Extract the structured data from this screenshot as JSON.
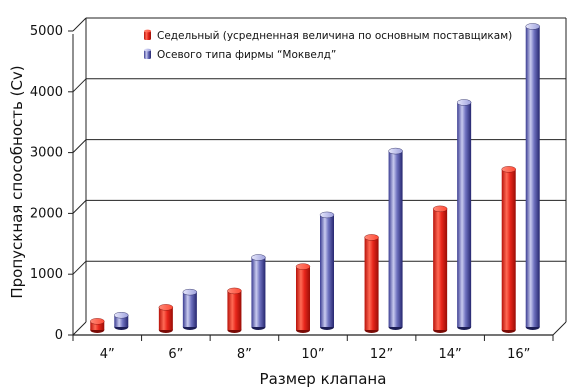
{
  "chart_data": {
    "type": "bar",
    "xlabel": "Размер клапана",
    "ylabel": "Пропускная способность (Cv)",
    "categories": [
      "4”",
      "6”",
      "8”",
      "10”",
      "12”",
      "14”",
      "16”"
    ],
    "ylim": [
      0,
      5000
    ],
    "yticks": [
      "0",
      "1000",
      "2000",
      "3000",
      "4000",
      "5000"
    ],
    "grid": true,
    "legend_position": "top-left",
    "series": [
      {
        "name": "Седельный (усредненная величина по основным поставщикам)",
        "color": "#e8261b",
        "values": [
          150,
          380,
          650,
          1050,
          1530,
          2000,
          2650
        ]
      },
      {
        "name": "Осевого типа фирмы “Моквелд”",
        "color": "#3d3f9b",
        "values": [
          250,
          630,
          1200,
          1900,
          2950,
          3750,
          5000
        ]
      }
    ]
  }
}
